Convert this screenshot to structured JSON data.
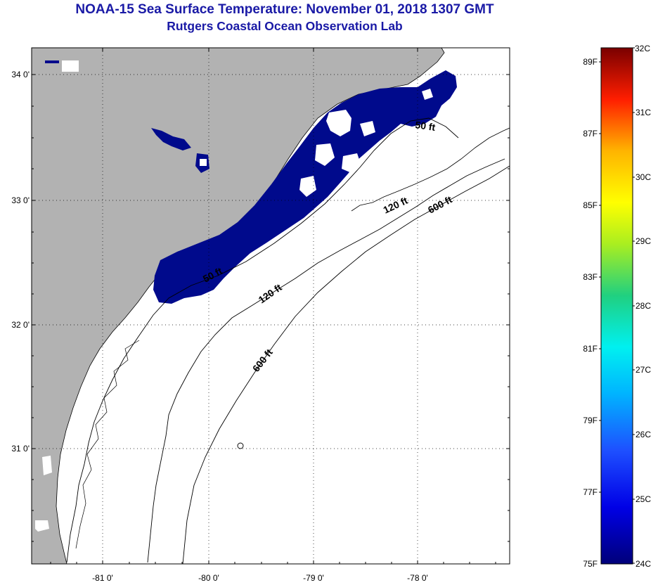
{
  "title": "NOAA-15 Sea Surface Temperature:  November 01, 2018 1307 GMT",
  "subtitle": "Rutgers Coastal Ocean Observation Lab",
  "map": {
    "lat_ticks": [
      "34 0'",
      "33 0'",
      "32 0'",
      "31 0'"
    ],
    "lon_ticks": [
      "-81 0'",
      "-80 0'",
      "-79 0'",
      "-78 0'"
    ],
    "contour_labels": [
      "50 ft",
      "120 ft",
      "600 ft",
      "50 ft",
      "120 ft",
      "600 ft"
    ],
    "land_color": "#b2b2b2",
    "sst_color": "#000a8c",
    "grid": "dotted"
  },
  "colorbar": {
    "type": "vertical-gradient",
    "f_labels": [
      "89F",
      "87F",
      "85F",
      "83F",
      "81F",
      "79F",
      "77F",
      "75F"
    ],
    "c_labels": [
      "32C",
      "31C",
      "30C",
      "29C",
      "28C",
      "27C",
      "26C",
      "25C",
      "24C"
    ],
    "range_c": [
      24,
      32
    ],
    "range_f": [
      75,
      89.6
    ]
  }
}
